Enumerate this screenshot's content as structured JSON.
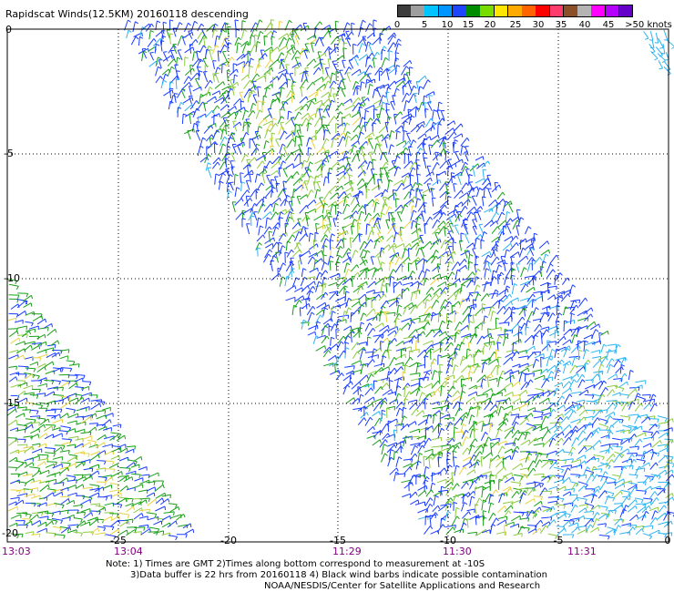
{
  "title": "Rapidscat Winds(12.5KM) 20160118 descending",
  "colorbar": {
    "colors": [
      "#3c3c3c",
      "#9e9e9e",
      "#00c4ff",
      "#0096ff",
      "#1e46ff",
      "#008c00",
      "#78dc00",
      "#ffe600",
      "#ffaa00",
      "#ff6400",
      "#ff0000",
      "#ff3c6e",
      "#8c5028",
      "#b4b4b4",
      "#ff00ff",
      "#b400ff",
      "#6400c8"
    ],
    "labels": [
      "0",
      "5",
      "10",
      "15",
      "20",
      "25",
      "30",
      "35",
      "40",
      "45",
      ">50 knots"
    ]
  },
  "map": {
    "lon_ticks": [
      "-25",
      "-20",
      "-15",
      "-10",
      "-5",
      "0"
    ],
    "lat_ticks": [
      "0",
      "-5",
      "-10",
      "-15",
      "-20"
    ],
    "time_labels": [
      "13:03",
      "13:04",
      "11:29",
      "11:30",
      "11:31"
    ],
    "barb_colors": {
      "blue": "#1a3cff",
      "green": "#18a018",
      "lightgreen": "#8ccc40",
      "cyan": "#2eb4f0",
      "yellow": "#e8d440"
    }
  },
  "notes": {
    "line1": "Note: 1) Times are GMT 2)Times along bottom correspond to measurement at -10S",
    "line2": "3)Data buffer is 22 hrs from 20160118 4) Black wind barbs indicate possible contamination",
    "line3": "NOAA/NESDIS/Center for Satellite Applications and Research"
  }
}
